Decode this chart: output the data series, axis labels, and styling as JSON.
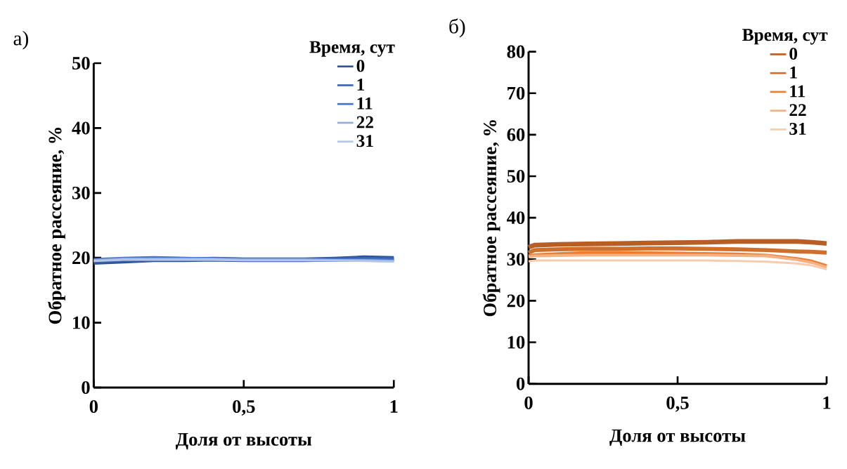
{
  "chart_data": [
    {
      "type": "line",
      "title": "а)",
      "xlabel": "Доля от высоты",
      "ylabel": "Обратное рассеяние, %",
      "legend_title": "Время, сут",
      "legend": "top right",
      "grid": false,
      "marker": "none",
      "line_style": "solid",
      "x": [
        0,
        0.1,
        0.2,
        0.3,
        0.4,
        0.5,
        0.6,
        0.7,
        0.8,
        0.9,
        1
      ],
      "xlim": [
        0,
        1
      ],
      "ylim": [
        0,
        50
      ],
      "xticks": [
        0,
        {
          "value": 0.5,
          "label": "0,5"
        },
        1
      ],
      "yticks": [
        0,
        10,
        20,
        30,
        40,
        50
      ],
      "series": [
        {
          "name": "0",
          "color": "#2f5597",
          "values": [
            19.3,
            19.5,
            19.7,
            19.7,
            19.8,
            19.7,
            19.7,
            19.7,
            19.8,
            20.0,
            19.9
          ]
        },
        {
          "name": "1",
          "color": "#3a64b4",
          "values": [
            19.5,
            19.7,
            19.8,
            19.8,
            19.8,
            19.7,
            19.7,
            19.7,
            19.7,
            19.8,
            19.8
          ]
        },
        {
          "name": "11",
          "color": "#4472c4",
          "values": [
            19.7,
            19.9,
            20.0,
            19.9,
            19.8,
            19.7,
            19.7,
            19.7,
            19.7,
            19.7,
            19.6
          ]
        },
        {
          "name": "22",
          "color": "#8faadc",
          "values": [
            19.6,
            19.8,
            19.8,
            19.8,
            19.8,
            19.7,
            19.7,
            19.7,
            19.6,
            19.6,
            19.5
          ]
        },
        {
          "name": "31",
          "color": "#b4c7e7",
          "values": [
            19.5,
            19.7,
            19.7,
            19.7,
            19.7,
            19.6,
            19.6,
            19.6,
            19.6,
            19.5,
            19.4
          ]
        }
      ]
    },
    {
      "type": "line",
      "title": "б)",
      "xlabel": "Доля от высоты",
      "ylabel": "Обратное рассеяние, %",
      "legend_title": "Время, сут",
      "legend": "top right",
      "grid": false,
      "marker": "none",
      "line_style": "solid",
      "x": [
        0,
        0.02,
        0.1,
        0.2,
        0.3,
        0.4,
        0.5,
        0.6,
        0.7,
        0.8,
        0.9,
        0.95,
        1
      ],
      "xlim": [
        0,
        1
      ],
      "ylim": [
        0,
        80
      ],
      "xticks": [
        0,
        {
          "value": 0.5,
          "label": "0,5"
        },
        1
      ],
      "yticks": [
        0,
        10,
        20,
        30,
        40,
        50,
        60,
        70,
        80
      ],
      "series": [
        {
          "name": "0",
          "color": "#b85d23",
          "values": [
            32.9,
            33.4,
            33.6,
            33.7,
            33.8,
            33.9,
            34.0,
            34.1,
            34.3,
            34.3,
            34.3,
            34.1,
            33.8
          ]
        },
        {
          "name": "1",
          "color": "#d06f2c",
          "values": [
            31.6,
            32.2,
            32.4,
            32.5,
            32.5,
            32.6,
            32.6,
            32.5,
            32.4,
            32.2,
            31.9,
            31.8,
            31.6
          ]
        },
        {
          "name": "11",
          "color": "#ed7d31",
          "values": [
            30.8,
            31.0,
            31.3,
            31.6,
            31.6,
            31.5,
            31.4,
            31.3,
            31.2,
            30.9,
            30.1,
            29.5,
            28.4
          ]
        },
        {
          "name": "22",
          "color": "#f4b183",
          "values": [
            30.6,
            30.8,
            30.9,
            31.0,
            31.0,
            31.0,
            31.0,
            31.0,
            30.9,
            30.8,
            29.9,
            29.2,
            28.1
          ]
        },
        {
          "name": "31",
          "color": "#f8cbad",
          "values": [
            29.5,
            29.7,
            29.7,
            29.7,
            29.7,
            29.7,
            29.7,
            29.7,
            29.6,
            29.4,
            29.0,
            28.5,
            27.6
          ]
        }
      ]
    }
  ]
}
